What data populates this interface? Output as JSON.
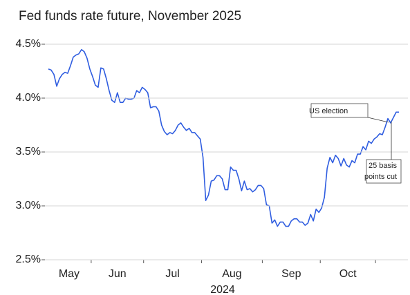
{
  "chart_data": {
    "type": "line",
    "title": "Fed funds rate future, November 2025",
    "xlabel": "2024",
    "categories": [
      "May",
      "Jun",
      "Jul",
      "Aug",
      "Sep",
      "Oct",
      null
    ],
    "series": [
      {
        "name": "Fed funds rate future",
        "color": "#2f5de0",
        "values": [
          [
            4.27,
            4.26,
            4.22,
            4.11,
            4.18,
            4.22,
            4.24,
            4.23,
            4.3,
            4.38,
            4.4,
            4.41,
            4.45,
            4.43,
            4.37,
            4.27
          ],
          [
            4.2,
            4.12,
            4.1,
            4.28,
            4.27,
            4.18,
            4.07,
            3.98,
            3.96,
            4.05,
            3.96,
            3.96,
            4.0,
            3.99,
            3.99,
            4.0,
            4.07,
            4.05,
            4.1
          ],
          [
            4.08,
            4.05,
            3.91,
            3.92,
            3.92,
            3.88,
            3.75,
            3.69,
            3.66,
            3.68,
            3.67,
            3.7,
            3.75,
            3.77,
            3.73,
            3.7,
            3.72,
            3.68,
            3.68,
            3.65,
            3.62
          ],
          [
            3.45,
            3.05,
            3.1,
            3.23,
            3.24,
            3.28,
            3.28,
            3.25,
            3.15,
            3.15,
            3.36,
            3.33,
            3.33,
            3.25,
            3.14,
            3.23,
            3.15,
            3.16,
            3.13,
            3.15,
            3.19,
            3.19
          ],
          [
            3.16,
            3.01,
            3.0,
            2.84,
            2.87,
            2.81,
            2.85,
            2.85,
            2.81,
            2.81,
            2.86,
            2.88,
            2.88,
            2.85,
            2.85,
            2.82,
            2.84,
            2.92,
            2.86,
            2.97,
            2.94
          ],
          [
            2.98,
            3.08,
            3.35,
            3.45,
            3.4,
            3.47,
            3.44,
            3.37,
            3.44,
            3.38,
            3.36,
            3.42,
            3.4,
            3.48,
            3.48,
            3.55,
            3.52,
            3.6,
            3.58,
            3.62
          ],
          [
            3.64,
            3.67,
            3.66,
            3.73,
            3.81,
            3.77,
            3.82,
            3.87,
            3.87
          ]
        ]
      }
    ],
    "ylim": [
      2.5,
      4.5
    ],
    "yticks": [
      {
        "value": 2.5,
        "label": "2.5%"
      },
      {
        "value": 3.0,
        "label": "3.0%"
      },
      {
        "value": 3.5,
        "label": "3.5%"
      },
      {
        "value": 4.0,
        "label": "4.0%"
      },
      {
        "value": 4.5,
        "label": "4.5%"
      }
    ],
    "grid": true,
    "annotations": [
      {
        "text": [
          "US election"
        ]
      },
      {
        "text": [
          "25 basis",
          "points cut"
        ]
      }
    ]
  }
}
